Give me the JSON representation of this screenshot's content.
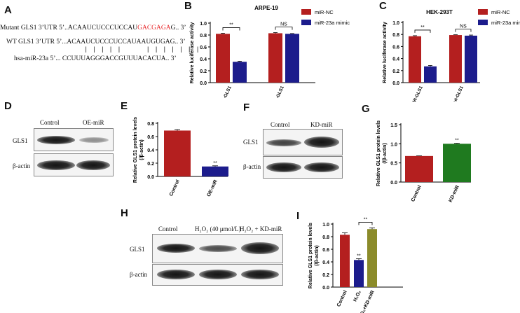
{
  "panel_letters": {
    "a": "A",
    "b": "B",
    "c": "C",
    "d": "D",
    "e": "E",
    "f": "F",
    "g": "G",
    "h": "H",
    "i": "I"
  },
  "sequences": {
    "mutant_prefix": "Mutant GLS1 3’UTR 5’..ACAAUCUCCCUCCAU",
    "mutant_red": "GACGAGA",
    "mutant_suffix": "G.. 3’",
    "wt": "WT GLS1 3’UTR 5’...ACAAUCUCCCUCCAUAAUGUGAG.. 3’",
    "pairing": "| | | | |      | | | | | | |",
    "mir": "hsa-miR-23a 5’... CCUUUAGGGACCGUUUACACUA.. 3’"
  },
  "blots": {
    "d": {
      "lanes": [
        "Control",
        "OE-miR"
      ],
      "rows": [
        "GLS1",
        "β-actin"
      ],
      "gls1_intensity": [
        1.0,
        0.35
      ]
    },
    "f": {
      "lanes": [
        "Control",
        "KD-miR"
      ],
      "rows": [
        "GLS1",
        "β-actin"
      ],
      "gls1_intensity": [
        0.65,
        1.0
      ]
    },
    "h": {
      "lanes": [
        "Control",
        "H₂O₂ (40 μmol/L)",
        "H₂O₂ + KD-miR"
      ],
      "rows": [
        "GLS1",
        "β-actin"
      ],
      "gls1_intensity": [
        0.85,
        0.5,
        1.0
      ]
    }
  },
  "chart_data": [
    {
      "id": "B",
      "type": "bar",
      "title": "ARPE-19",
      "categories": [
        "Wt-GLS1",
        "Mut-GLS1"
      ],
      "series": [
        {
          "name": "miR-NC",
          "color": "#b41f1f",
          "values": [
            0.82,
            0.83
          ],
          "errors": [
            0.01,
            0.01
          ]
        },
        {
          "name": "miR-23a mimic",
          "color": "#1c1c8c",
          "values": [
            0.35,
            0.82
          ],
          "errors": [
            0.01,
            0.005
          ]
        }
      ],
      "ylabel": "Relative luciferase activity",
      "ylim": [
        0,
        1.0
      ],
      "yticks": [
        "0.0",
        "0.2",
        "0.4",
        "0.6",
        "0.8",
        "1.0"
      ],
      "annotations": [
        "**",
        "NS"
      ]
    },
    {
      "id": "C",
      "type": "bar",
      "title": "HEK-293T",
      "categories": [
        "Wt-GLS1",
        "Mut-GLS1"
      ],
      "series": [
        {
          "name": "miR-NC",
          "color": "#b41f1f",
          "values": [
            0.77,
            0.79
          ],
          "errors": [
            0.01,
            0.005
          ]
        },
        {
          "name": "miR-23a mimic",
          "color": "#1c1c8c",
          "values": [
            0.27,
            0.78
          ],
          "errors": [
            0.015,
            0.01
          ]
        }
      ],
      "ylabel": "Relative luciferase activity",
      "ylim": [
        0,
        1.0
      ],
      "yticks": [
        "0.0",
        "0.2",
        "0.4",
        "0.6",
        "0.8",
        "1.0"
      ],
      "annotations": [
        "**",
        "NS"
      ]
    },
    {
      "id": "E",
      "type": "bar",
      "categories": [
        "Control",
        "OE-miR"
      ],
      "values": [
        0.69,
        0.15
      ],
      "errors": [
        0.015,
        0.01
      ],
      "colors": [
        "#b41f1f",
        "#1c1c8c"
      ],
      "ylabel": "Relative GLS1 protein  levels (/β-actin)",
      "ylim": [
        0,
        0.8
      ],
      "yticks": [
        "0.0",
        "0.2",
        "0.4",
        "0.6",
        "0.8"
      ],
      "annotations": [
        "**"
      ]
    },
    {
      "id": "G",
      "type": "bar",
      "categories": [
        "Control",
        "KD-miR"
      ],
      "values": [
        0.68,
        1.0
      ],
      "errors": [
        0.005,
        0.015
      ],
      "colors": [
        "#b41f1f",
        "#1f7a1f"
      ],
      "ylabel": "Relative GLS1 protein  levels (/β-actin)",
      "ylim": [
        0,
        1.5
      ],
      "yticks": [
        "0.0",
        "0.5",
        "1.0",
        "1.5"
      ],
      "annotations": [
        "**"
      ]
    },
    {
      "id": "I",
      "type": "bar",
      "categories": [
        "Control",
        "H₂O₂",
        "H₂O₂+KD-miR"
      ],
      "values": [
        0.83,
        0.43,
        0.92
      ],
      "errors": [
        0.03,
        0.02,
        0.02
      ],
      "colors": [
        "#b41f1f",
        "#1c1c8c",
        "#8b8b2a"
      ],
      "ylabel": "Relative GLS1 protein  levels (/β-actin)",
      "ylim": [
        0,
        1.0
      ],
      "yticks": [
        "0.0",
        "0.2",
        "0.4",
        "0.6",
        "0.8",
        "1.0"
      ],
      "annotations": [
        "**",
        "**"
      ]
    }
  ]
}
